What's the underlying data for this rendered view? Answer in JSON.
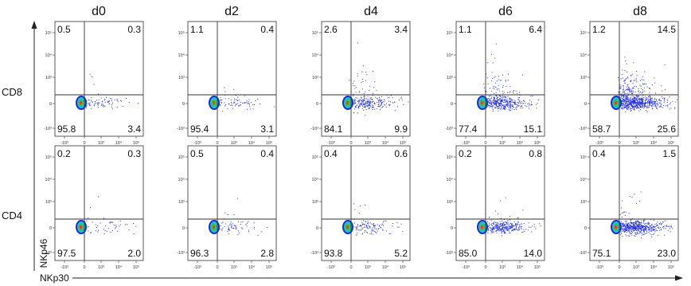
{
  "chart_data": {
    "type": "scatter",
    "description_kind": "flow cytometry density dot plots",
    "columns": [
      "d0",
      "d2",
      "d4",
      "d6",
      "d8"
    ],
    "rows": [
      "CD8",
      "CD4"
    ],
    "xlabel": "NKp30",
    "ylabel": "NKp46",
    "x_tick_labels": [
      "-10³",
      "0",
      "10³",
      "10⁴",
      "10⁵"
    ],
    "y_tick_labels": [
      "10⁵",
      "10⁴",
      "10³",
      "0",
      "-10³"
    ],
    "panels": [
      {
        "row": "CD8",
        "col": "d0",
        "quadrants": {
          "ul": "0.5",
          "ur": "0.3",
          "ll": "95.8",
          "lr": "3.4"
        }
      },
      {
        "row": "CD8",
        "col": "d2",
        "quadrants": {
          "ul": "1.1",
          "ur": "0.4",
          "ll": "95.4",
          "lr": "3.1"
        }
      },
      {
        "row": "CD8",
        "col": "d4",
        "quadrants": {
          "ul": "2.6",
          "ur": "3.4",
          "ll": "84.1",
          "lr": "9.9"
        }
      },
      {
        "row": "CD8",
        "col": "d6",
        "quadrants": {
          "ul": "1.1",
          "ur": "6.4",
          "ll": "77.4",
          "lr": "15.1"
        }
      },
      {
        "row": "CD8",
        "col": "d8",
        "quadrants": {
          "ul": "1.2",
          "ur": "14.5",
          "ll": "58.7",
          "lr": "25.6"
        }
      },
      {
        "row": "CD4",
        "col": "d0",
        "quadrants": {
          "ul": "0.2",
          "ur": "0.3",
          "ll": "97.5",
          "lr": "2.0"
        }
      },
      {
        "row": "CD4",
        "col": "d2",
        "quadrants": {
          "ul": "0.5",
          "ur": "0.4",
          "ll": "96.3",
          "lr": "2.8"
        }
      },
      {
        "row": "CD4",
        "col": "d4",
        "quadrants": {
          "ul": "0.4",
          "ur": "0.6",
          "ll": "93.8",
          "lr": "5.2"
        }
      },
      {
        "row": "CD4",
        "col": "d6",
        "quadrants": {
          "ul": "0.2",
          "ur": "0.8",
          "ll": "85.0",
          "lr": "14.0"
        }
      },
      {
        "row": "CD4",
        "col": "d8",
        "quadrants": {
          "ul": "0.4",
          "ur": "1.5",
          "ll": "75.1",
          "lr": "23.0"
        }
      }
    ],
    "colors": {
      "low": "#1f2bd6",
      "mid": "#19c3d9",
      "high": "#2ecc40",
      "peak": "#ff3a1a"
    }
  }
}
